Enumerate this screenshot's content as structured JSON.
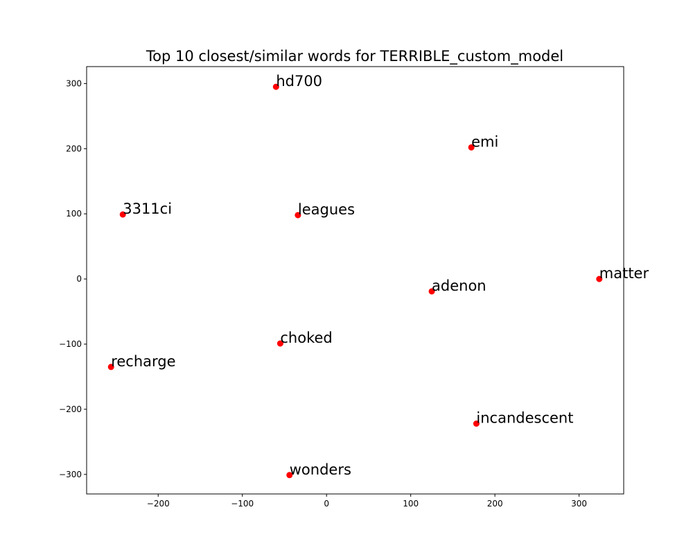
{
  "chart_data": {
    "type": "scatter",
    "title": "Top 10 closest/similar words for TERRIBLE_custom_model",
    "xlabel": "",
    "ylabel": "",
    "xlim": [
      -285,
      353
    ],
    "ylim": [
      -330,
      326
    ],
    "xticks": [
      -200,
      -100,
      0,
      100,
      200,
      300
    ],
    "yticks": [
      -300,
      -200,
      -100,
      0,
      100,
      200,
      300
    ],
    "xtick_labels": [
      "−200",
      "−100",
      "0",
      "100",
      "200",
      "300"
    ],
    "ytick_labels": [
      "−300",
      "−200",
      "−100",
      "0",
      "100",
      "200",
      "300"
    ],
    "grid": false,
    "marker_color": "#ff0000",
    "points": [
      {
        "label": "hd700",
        "x": -60,
        "y": 295
      },
      {
        "label": "emi",
        "x": 172,
        "y": 202
      },
      {
        "label": "3311ci",
        "x": -242,
        "y": 99
      },
      {
        "label": "leagues",
        "x": -34,
        "y": 98
      },
      {
        "label": "matter",
        "x": 324,
        "y": 0
      },
      {
        "label": "adenon",
        "x": 125,
        "y": -19
      },
      {
        "label": "choked",
        "x": -55,
        "y": -99
      },
      {
        "label": "recharge",
        "x": -256,
        "y": -135
      },
      {
        "label": "incandescent",
        "x": 178,
        "y": -222
      },
      {
        "label": "wonders",
        "x": -44,
        "y": -301
      }
    ]
  }
}
